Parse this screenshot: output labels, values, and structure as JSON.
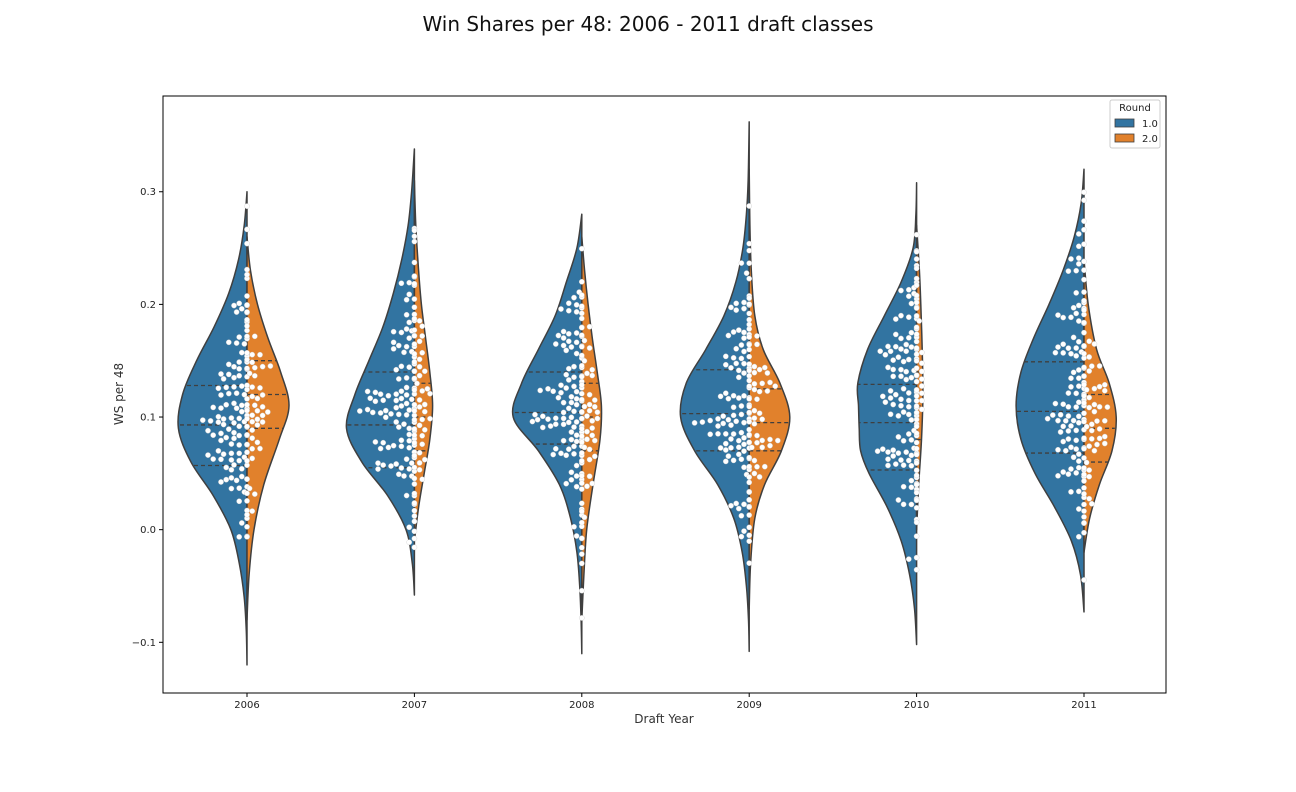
{
  "chart_data": {
    "type": "violin",
    "title": "Win Shares per 48: 2006 - 2011 draft classes",
    "xlabel": "Draft Year",
    "ylabel": "WS per 48",
    "categories": [
      "2006",
      "2007",
      "2008",
      "2009",
      "2010",
      "2011"
    ],
    "ylim": [
      -0.145,
      0.385
    ],
    "yticks": [
      -0.1,
      0.0,
      0.1,
      0.2,
      0.3
    ],
    "ytick_labels": [
      "−0.1",
      "0.0",
      "0.1",
      "0.2",
      "0.3"
    ],
    "split": true,
    "inner": "quartile + swarm",
    "legend": {
      "title": "Round",
      "placement": "top-right",
      "entries": [
        {
          "label": "1.0",
          "color": "#3274a1"
        },
        {
          "label": "2.0",
          "color": "#e1812c"
        }
      ]
    },
    "series": [
      {
        "name": "1.0",
        "color": "#3274a1",
        "groups": [
          {
            "category": "2006",
            "min": -0.12,
            "max": 0.3,
            "q1": 0.057,
            "median": 0.093,
            "q3": 0.128,
            "density": [
              [
                -0.12,
                0.0
              ],
              [
                -0.09,
                0.01
              ],
              [
                -0.06,
                0.04
              ],
              [
                -0.03,
                0.11
              ],
              [
                0.0,
                0.23
              ],
              [
                0.03,
                0.48
              ],
              [
                0.06,
                0.8
              ],
              [
                0.09,
                0.98
              ],
              [
                0.12,
                0.92
              ],
              [
                0.15,
                0.72
              ],
              [
                0.18,
                0.47
              ],
              [
                0.21,
                0.26
              ],
              [
                0.24,
                0.12
              ],
              [
                0.27,
                0.04
              ],
              [
                0.3,
                0.0
              ]
            ]
          },
          {
            "category": "2007",
            "min": -0.058,
            "max": 0.338,
            "q1": 0.055,
            "median": 0.093,
            "q3": 0.14,
            "density": [
              [
                -0.058,
                0.0
              ],
              [
                -0.03,
                0.03
              ],
              [
                0.0,
                0.12
              ],
              [
                0.03,
                0.38
              ],
              [
                0.06,
                0.75
              ],
              [
                0.09,
                0.97
              ],
              [
                0.12,
                0.85
              ],
              [
                0.15,
                0.65
              ],
              [
                0.18,
                0.45
              ],
              [
                0.21,
                0.3
              ],
              [
                0.24,
                0.18
              ],
              [
                0.27,
                0.09
              ],
              [
                0.3,
                0.04
              ],
              [
                0.338,
                0.0
              ]
            ]
          },
          {
            "category": "2008",
            "min": -0.11,
            "max": 0.28,
            "q1": 0.076,
            "median": 0.104,
            "q3": 0.14,
            "density": [
              [
                -0.11,
                0.0
              ],
              [
                -0.08,
                0.01
              ],
              [
                -0.05,
                0.03
              ],
              [
                -0.02,
                0.07
              ],
              [
                0.01,
                0.16
              ],
              [
                0.04,
                0.32
              ],
              [
                0.07,
                0.62
              ],
              [
                0.1,
                0.98
              ],
              [
                0.13,
                0.86
              ],
              [
                0.16,
                0.62
              ],
              [
                0.19,
                0.38
              ],
              [
                0.22,
                0.22
              ],
              [
                0.25,
                0.07
              ],
              [
                0.28,
                0.0
              ]
            ]
          },
          {
            "category": "2009",
            "min": -0.108,
            "max": 0.362,
            "q1": 0.07,
            "median": 0.103,
            "q3": 0.142,
            "density": [
              [
                -0.108,
                0.0
              ],
              [
                -0.08,
                0.01
              ],
              [
                -0.05,
                0.04
              ],
              [
                -0.02,
                0.1
              ],
              [
                0.01,
                0.22
              ],
              [
                0.04,
                0.45
              ],
              [
                0.07,
                0.78
              ],
              [
                0.1,
                0.98
              ],
              [
                0.13,
                0.9
              ],
              [
                0.16,
                0.62
              ],
              [
                0.19,
                0.36
              ],
              [
                0.22,
                0.19
              ],
              [
                0.25,
                0.09
              ],
              [
                0.28,
                0.04
              ],
              [
                0.31,
                0.015
              ],
              [
                0.362,
                0.0
              ]
            ]
          },
          {
            "category": "2010",
            "min": -0.102,
            "max": 0.308,
            "q1": 0.053,
            "median": 0.095,
            "q3": 0.129,
            "density": [
              [
                -0.102,
                0.0
              ],
              [
                -0.07,
                0.03
              ],
              [
                -0.04,
                0.1
              ],
              [
                -0.01,
                0.22
              ],
              [
                0.02,
                0.42
              ],
              [
                0.05,
                0.68
              ],
              [
                0.07,
                0.8
              ],
              [
                0.09,
                0.82
              ],
              [
                0.11,
                0.83
              ],
              [
                0.13,
                0.84
              ],
              [
                0.16,
                0.7
              ],
              [
                0.19,
                0.46
              ],
              [
                0.22,
                0.22
              ],
              [
                0.25,
                0.05
              ],
              [
                0.28,
                0.01
              ],
              [
                0.308,
                0.0
              ]
            ]
          },
          {
            "category": "2011",
            "min": -0.073,
            "max": 0.32,
            "q1": 0.068,
            "median": 0.105,
            "q3": 0.149,
            "density": [
              [
                -0.073,
                0.0
              ],
              [
                -0.04,
                0.05
              ],
              [
                -0.01,
                0.18
              ],
              [
                0.02,
                0.42
              ],
              [
                0.05,
                0.7
              ],
              [
                0.08,
                0.9
              ],
              [
                0.11,
                0.97
              ],
              [
                0.14,
                0.9
              ],
              [
                0.17,
                0.72
              ],
              [
                0.2,
                0.5
              ],
              [
                0.23,
                0.3
              ],
              [
                0.26,
                0.14
              ],
              [
                0.29,
                0.04
              ],
              [
                0.32,
                0.0
              ]
            ]
          }
        ]
      },
      {
        "name": "2.0",
        "color": "#e1812c",
        "groups": [
          {
            "category": "2006",
            "min": -0.08,
            "max": 0.26,
            "q1": 0.09,
            "median": 0.12,
            "q3": 0.15,
            "density": [
              [
                -0.08,
                0.0
              ],
              [
                -0.04,
                0.03
              ],
              [
                0.0,
                0.1
              ],
              [
                0.04,
                0.24
              ],
              [
                0.08,
                0.46
              ],
              [
                0.11,
                0.6
              ],
              [
                0.14,
                0.48
              ],
              [
                0.17,
                0.3
              ],
              [
                0.2,
                0.15
              ],
              [
                0.23,
                0.05
              ],
              [
                0.26,
                0.0
              ]
            ]
          },
          {
            "category": "2007",
            "min": -0.01,
            "max": 0.31,
            "q1": 0.07,
            "median": 0.1,
            "q3": 0.13,
            "density": [
              [
                -0.01,
                0.0
              ],
              [
                0.02,
                0.06
              ],
              [
                0.05,
                0.14
              ],
              [
                0.08,
                0.22
              ],
              [
                0.11,
                0.26
              ],
              [
                0.14,
                0.22
              ],
              [
                0.17,
                0.16
              ],
              [
                0.2,
                0.1
              ],
              [
                0.23,
                0.06
              ],
              [
                0.27,
                0.02
              ],
              [
                0.31,
                0.0
              ]
            ]
          },
          {
            "category": "2008",
            "min": -0.08,
            "max": 0.26,
            "q1": 0.07,
            "median": 0.1,
            "q3": 0.13,
            "density": [
              [
                -0.08,
                0.0
              ],
              [
                -0.04,
                0.03
              ],
              [
                0.0,
                0.07
              ],
              [
                0.04,
                0.16
              ],
              [
                0.08,
                0.26
              ],
              [
                0.11,
                0.28
              ],
              [
                0.14,
                0.22
              ],
              [
                0.17,
                0.15
              ],
              [
                0.2,
                0.09
              ],
              [
                0.23,
                0.04
              ],
              [
                0.26,
                0.0
              ]
            ]
          },
          {
            "category": "2009",
            "min": -0.07,
            "max": 0.32,
            "q1": 0.07,
            "median": 0.095,
            "q3": 0.125,
            "density": [
              [
                -0.07,
                0.0
              ],
              [
                -0.03,
                0.02
              ],
              [
                0.01,
                0.08
              ],
              [
                0.04,
                0.22
              ],
              [
                0.07,
                0.46
              ],
              [
                0.1,
                0.58
              ],
              [
                0.13,
                0.44
              ],
              [
                0.16,
                0.2
              ],
              [
                0.19,
                0.08
              ],
              [
                0.23,
                0.03
              ],
              [
                0.27,
                0.01
              ],
              [
                0.32,
                0.0
              ]
            ]
          },
          {
            "category": "2010",
            "min": 0.0,
            "max": 0.27,
            "q1": 0.08,
            "median": 0.11,
            "q3": 0.14,
            "density": [
              [
                0.0,
                0.0
              ],
              [
                0.04,
                0.03
              ],
              [
                0.08,
                0.07
              ],
              [
                0.12,
                0.09
              ],
              [
                0.16,
                0.08
              ],
              [
                0.2,
                0.06
              ],
              [
                0.23,
                0.04
              ],
              [
                0.27,
                0.0
              ]
            ]
          },
          {
            "category": "2011",
            "min": -0.02,
            "max": 0.24,
            "q1": 0.06,
            "median": 0.09,
            "q3": 0.12,
            "density": [
              [
                -0.02,
                0.0
              ],
              [
                0.01,
                0.08
              ],
              [
                0.04,
                0.22
              ],
              [
                0.07,
                0.4
              ],
              [
                0.1,
                0.46
              ],
              [
                0.13,
                0.36
              ],
              [
                0.16,
                0.18
              ],
              [
                0.2,
                0.06
              ],
              [
                0.24,
                0.0
              ]
            ]
          }
        ]
      }
    ]
  }
}
